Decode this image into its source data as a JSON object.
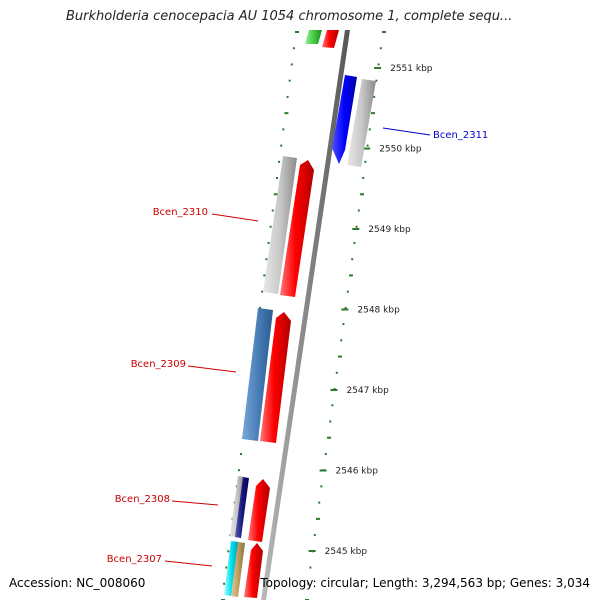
{
  "title": "Burkholderia cenocepacia AU 1054 chromosome 1, complete sequ...",
  "footer": {
    "accession": "Accession: NC_008060",
    "summary": "Topology: circular; Length: 3,294,563 bp; Genes: 3,034"
  },
  "scale": {
    "unit_color": "#2a7a2a",
    "ticks": [
      {
        "label": "2551 kbp",
        "kbp": 2551
      },
      {
        "label": "2550 kbp",
        "kbp": 2550
      },
      {
        "label": "2549 kbp",
        "kbp": 2549
      },
      {
        "label": "2548 kbp",
        "kbp": 2548
      },
      {
        "label": "2547 kbp",
        "kbp": 2547
      },
      {
        "label": "2546 kbp",
        "kbp": 2546
      },
      {
        "label": "2545 kbp",
        "kbp": 2545
      }
    ]
  },
  "genes": [
    {
      "name": "Bcen_2311",
      "label_color": "#0000cc"
    },
    {
      "name": "Bcen_2310",
      "label_color": "#cc0000"
    },
    {
      "name": "Bcen_2309",
      "label_color": "#cc0000"
    },
    {
      "name": "Bcen_2308",
      "label_color": "#cc0000"
    },
    {
      "name": "Bcen_2307",
      "label_color": "#cc0000"
    }
  ]
}
